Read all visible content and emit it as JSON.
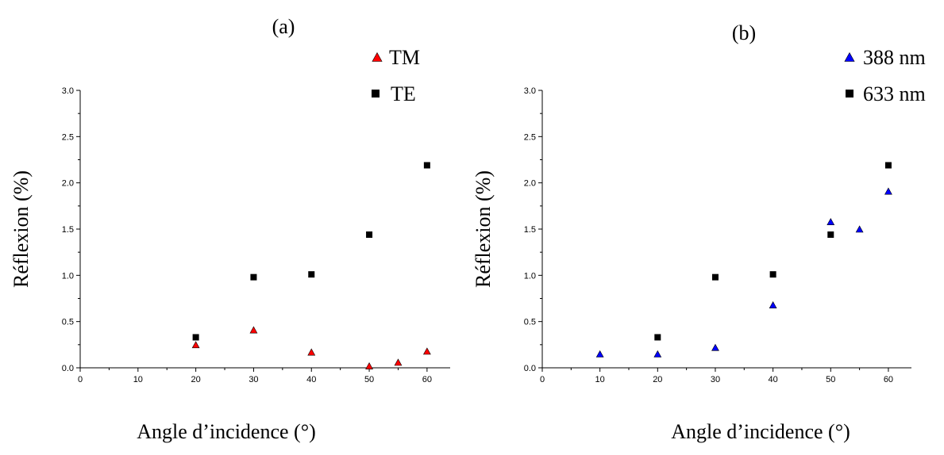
{
  "chart_data": [
    {
      "type": "scatter",
      "title": "(a)",
      "xlabel": "Angle d’incidence (°)",
      "ylabel": "Réflexion (%)",
      "xlim": [
        0,
        64
      ],
      "ylim": [
        0,
        3.0
      ],
      "x_ticks": [
        "0",
        "10",
        "20",
        "30",
        "40",
        "50",
        "60"
      ],
      "y_ticks": [
        "0.0",
        "0.5",
        "1.0",
        "1.5",
        "2.0",
        "2.5",
        "3.0"
      ],
      "grid": false,
      "legend_position": "top-right",
      "series": [
        {
          "name": "TM",
          "marker": "triangle",
          "color": "#ff0000",
          "x": [
            20,
            30,
            40,
            50,
            55,
            60
          ],
          "y": [
            0.25,
            0.41,
            0.17,
            0.02,
            0.06,
            0.18
          ]
        },
        {
          "name": "TE",
          "marker": "square",
          "color": "#000000",
          "x": [
            20,
            30,
            40,
            50,
            60
          ],
          "y": [
            0.33,
            0.98,
            1.01,
            1.44,
            2.19
          ]
        }
      ]
    },
    {
      "type": "scatter",
      "title": "(b)",
      "xlabel": "Angle d’incidence (°)",
      "ylabel": "Réflexion (%)",
      "xlim": [
        0,
        64
      ],
      "ylim": [
        0,
        3.0
      ],
      "x_ticks": [
        "0",
        "10",
        "20",
        "30",
        "40",
        "50",
        "60"
      ],
      "y_ticks": [
        "0.0",
        "0.5",
        "1.0",
        "1.5",
        "2.0",
        "2.5",
        "3.0"
      ],
      "grid": false,
      "legend_position": "top-right",
      "series": [
        {
          "name": "388 nm",
          "marker": "triangle",
          "color": "#0000ff",
          "x": [
            10,
            20,
            30,
            40,
            50,
            55,
            60
          ],
          "y": [
            0.15,
            0.15,
            0.22,
            0.68,
            1.58,
            1.5,
            1.91
          ]
        },
        {
          "name": "633 nm",
          "marker": "square",
          "color": "#000000",
          "x": [
            20,
            30,
            40,
            50,
            60
          ],
          "y": [
            0.33,
            0.98,
            1.01,
            1.44,
            2.19
          ]
        }
      ]
    }
  ]
}
